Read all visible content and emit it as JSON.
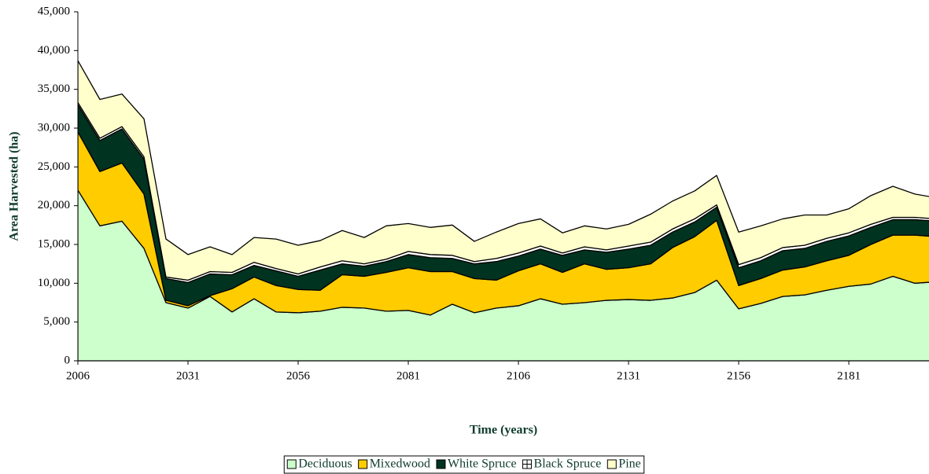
{
  "chart_data": {
    "type": "stacked_area",
    "ylabel": "Area Harvested (ha)",
    "xlabel": "Time (years)",
    "x": [
      2006,
      2011,
      2016,
      2021,
      2026,
      2031,
      2036,
      2041,
      2046,
      2051,
      2056,
      2061,
      2066,
      2071,
      2076,
      2081,
      2086,
      2091,
      2096,
      2101,
      2106,
      2111,
      2116,
      2121,
      2126,
      2131,
      2136,
      2141,
      2146,
      2151,
      2156,
      2161,
      2166,
      2171,
      2176,
      2181,
      2186,
      2191,
      2196,
      2201
    ],
    "series": [
      {
        "name": "Deciduous",
        "color": "#ccffcc",
        "values": [
          22000,
          17400,
          18000,
          14500,
          7500,
          6800,
          8300,
          6300,
          8000,
          6300,
          6200,
          6400,
          6900,
          6800,
          6400,
          6500,
          5900,
          7300,
          6200,
          6800,
          7100,
          8000,
          7300,
          7500,
          7800,
          7900,
          7800,
          8100,
          8800,
          10400,
          6700,
          7400,
          8300,
          8500,
          9100,
          9600,
          9900,
          10900,
          10000,
          10200
        ]
      },
      {
        "name": "Mixedwood",
        "color": "#ffcc00",
        "values": [
          7500,
          7000,
          7500,
          7000,
          300,
          300,
          100,
          3000,
          2800,
          3400,
          3000,
          2700,
          4200,
          4100,
          5000,
          5500,
          5600,
          4200,
          4400,
          3600,
          4500,
          4500,
          4100,
          5000,
          4000,
          4100,
          4700,
          6500,
          7200,
          7700,
          3000,
          3200,
          3400,
          3600,
          3800,
          4000,
          5100,
          5300,
          6200,
          5800
        ]
      },
      {
        "name": "White Spruce",
        "color": "#003320",
        "values": [
          3500,
          4000,
          4400,
          4500,
          2800,
          3000,
          2800,
          1800,
          1500,
          1900,
          1700,
          2600,
          1400,
          1300,
          1400,
          1700,
          1800,
          1700,
          1900,
          2400,
          1900,
          1900,
          2200,
          1800,
          2200,
          2400,
          2400,
          2000,
          1900,
          1700,
          2300,
          2300,
          2500,
          2400,
          2500,
          2500,
          2200,
          2000,
          2000,
          2000
        ]
      },
      {
        "name": "Black Spruce",
        "color": "#ffffff",
        "values": [
          300,
          300,
          300,
          300,
          200,
          300,
          300,
          300,
          400,
          300,
          300,
          400,
          400,
          300,
          300,
          400,
          400,
          400,
          300,
          400,
          400,
          400,
          300,
          400,
          300,
          400,
          400,
          400,
          400,
          300,
          400,
          400,
          400,
          400,
          400,
          400,
          400,
          300,
          300,
          300
        ]
      },
      {
        "name": "Pine",
        "color": "#ffffcc",
        "values": [
          5400,
          5000,
          4200,
          4900,
          4900,
          3300,
          3200,
          2300,
          3200,
          3800,
          3700,
          3400,
          3900,
          3400,
          4300,
          3600,
          3500,
          3900,
          2600,
          3400,
          3800,
          3500,
          2600,
          2700,
          2700,
          2800,
          3600,
          3600,
          3600,
          3800,
          4200,
          4100,
          3700,
          3900,
          3000,
          3100,
          3700,
          4000,
          3000,
          2700
        ]
      }
    ],
    "xlim": [
      2006,
      2199.2
    ],
    "xticks": [
      2006,
      2031,
      2056,
      2081,
      2106,
      2131,
      2156,
      2181
    ],
    "ylim": [
      0,
      45000
    ],
    "yticks": [
      0,
      {
        "value": 5000,
        "label": "5,000"
      },
      {
        "value": 10000,
        "label": "10,000"
      },
      {
        "value": 15000,
        "label": "15,000"
      },
      {
        "value": 20000,
        "label": "20,000"
      },
      {
        "value": 25000,
        "label": "25,000"
      },
      {
        "value": 30000,
        "label": "30,000"
      },
      {
        "value": 35000,
        "label": "35,000"
      },
      {
        "value": 40000,
        "label": "40,000"
      },
      {
        "value": 45000,
        "label": "45,000"
      }
    ],
    "legend": "bottom"
  }
}
